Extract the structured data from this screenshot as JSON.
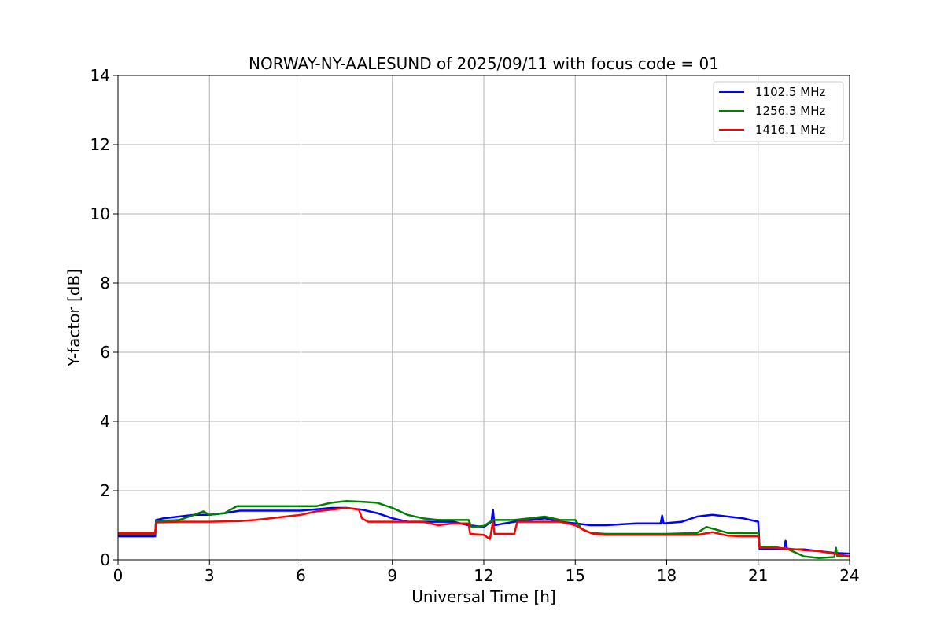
{
  "chart_data": {
    "type": "line",
    "title": "NORWAY-NY-AALESUND of 2025/09/11 with focus code = 01",
    "xlabel": "Universal Time [h]",
    "ylabel": "Y-factor [dB]",
    "xlim": [
      0,
      24
    ],
    "ylim": [
      0,
      14
    ],
    "xticks": [
      0,
      3,
      6,
      9,
      12,
      15,
      18,
      21,
      24
    ],
    "yticks": [
      0,
      2,
      4,
      6,
      8,
      10,
      12,
      14
    ],
    "grid": true,
    "legend_position": "top-right",
    "series": [
      {
        "name": "1102.5 MHz",
        "color": "#0000ff",
        "points": [
          [
            0,
            0.68
          ],
          [
            1.22,
            0.68
          ],
          [
            1.25,
            1.15
          ],
          [
            1.5,
            1.2
          ],
          [
            2.0,
            1.25
          ],
          [
            2.5,
            1.3
          ],
          [
            3.0,
            1.3
          ],
          [
            3.5,
            1.35
          ],
          [
            4.0,
            1.42
          ],
          [
            5.0,
            1.42
          ],
          [
            6.0,
            1.42
          ],
          [
            7.0,
            1.5
          ],
          [
            7.5,
            1.5
          ],
          [
            8.0,
            1.45
          ],
          [
            8.5,
            1.35
          ],
          [
            9.0,
            1.2
          ],
          [
            9.5,
            1.1
          ],
          [
            10.0,
            1.1
          ],
          [
            10.5,
            1.1
          ],
          [
            11.0,
            1.1
          ],
          [
            11.5,
            1.0
          ],
          [
            12.0,
            0.95
          ],
          [
            12.25,
            1.1
          ],
          [
            12.3,
            1.45
          ],
          [
            12.35,
            1.0
          ],
          [
            13.0,
            1.1
          ],
          [
            13.5,
            1.15
          ],
          [
            14.0,
            1.2
          ],
          [
            14.5,
            1.1
          ],
          [
            15.0,
            1.05
          ],
          [
            15.5,
            1.0
          ],
          [
            16.0,
            1.0
          ],
          [
            17.0,
            1.05
          ],
          [
            17.8,
            1.05
          ],
          [
            17.85,
            1.28
          ],
          [
            17.9,
            1.05
          ],
          [
            18.5,
            1.1
          ],
          [
            19.0,
            1.25
          ],
          [
            19.5,
            1.3
          ],
          [
            20.0,
            1.25
          ],
          [
            20.5,
            1.2
          ],
          [
            21.0,
            1.1
          ],
          [
            21.05,
            0.3
          ],
          [
            21.5,
            0.3
          ],
          [
            21.85,
            0.3
          ],
          [
            21.9,
            0.55
          ],
          [
            21.95,
            0.3
          ],
          [
            22.5,
            0.3
          ],
          [
            23.0,
            0.25
          ],
          [
            23.5,
            0.2
          ],
          [
            24.0,
            0.18
          ]
        ]
      },
      {
        "name": "1256.3 MHz",
        "color": "#008000",
        "points": [
          [
            0,
            0.75
          ],
          [
            1.22,
            0.75
          ],
          [
            1.25,
            1.12
          ],
          [
            2.0,
            1.15
          ],
          [
            2.5,
            1.3
          ],
          [
            2.8,
            1.4
          ],
          [
            3.0,
            1.3
          ],
          [
            3.5,
            1.35
          ],
          [
            3.9,
            1.55
          ],
          [
            5.0,
            1.55
          ],
          [
            6.5,
            1.55
          ],
          [
            7.0,
            1.65
          ],
          [
            7.5,
            1.7
          ],
          [
            8.0,
            1.68
          ],
          [
            8.5,
            1.65
          ],
          [
            9.0,
            1.5
          ],
          [
            9.5,
            1.3
          ],
          [
            10.0,
            1.2
          ],
          [
            10.5,
            1.15
          ],
          [
            11.0,
            1.15
          ],
          [
            11.5,
            1.15
          ],
          [
            11.6,
            0.95
          ],
          [
            12.0,
            0.98
          ],
          [
            12.3,
            1.15
          ],
          [
            13.0,
            1.15
          ],
          [
            13.5,
            1.2
          ],
          [
            14.0,
            1.25
          ],
          [
            14.5,
            1.15
          ],
          [
            15.0,
            1.15
          ],
          [
            15.2,
            0.9
          ],
          [
            15.5,
            0.78
          ],
          [
            16.0,
            0.75
          ],
          [
            17.0,
            0.75
          ],
          [
            18.0,
            0.75
          ],
          [
            19.0,
            0.78
          ],
          [
            19.3,
            0.95
          ],
          [
            19.6,
            0.88
          ],
          [
            20.0,
            0.78
          ],
          [
            21.0,
            0.78
          ],
          [
            21.05,
            0.38
          ],
          [
            21.5,
            0.38
          ],
          [
            22.0,
            0.3
          ],
          [
            22.5,
            0.1
          ],
          [
            23.0,
            0.05
          ],
          [
            23.5,
            0.08
          ],
          [
            23.55,
            0.35
          ],
          [
            23.6,
            0.1
          ],
          [
            24.0,
            0.1
          ]
        ]
      },
      {
        "name": "1416.1 MHz",
        "color": "#ff0000",
        "points": [
          [
            0,
            0.78
          ],
          [
            1.22,
            0.78
          ],
          [
            1.25,
            1.08
          ],
          [
            2.0,
            1.1
          ],
          [
            3.0,
            1.1
          ],
          [
            4.0,
            1.12
          ],
          [
            4.5,
            1.15
          ],
          [
            5.0,
            1.2
          ],
          [
            5.5,
            1.25
          ],
          [
            6.0,
            1.3
          ],
          [
            6.5,
            1.4
          ],
          [
            7.0,
            1.45
          ],
          [
            7.5,
            1.5
          ],
          [
            7.9,
            1.45
          ],
          [
            8.0,
            1.2
          ],
          [
            8.2,
            1.1
          ],
          [
            9.0,
            1.1
          ],
          [
            9.5,
            1.1
          ],
          [
            10.0,
            1.1
          ],
          [
            10.5,
            1.0
          ],
          [
            11.0,
            1.05
          ],
          [
            11.5,
            1.05
          ],
          [
            11.55,
            0.75
          ],
          [
            12.0,
            0.72
          ],
          [
            12.2,
            0.6
          ],
          [
            12.3,
            1.1
          ],
          [
            12.35,
            0.75
          ],
          [
            13.0,
            0.75
          ],
          [
            13.1,
            1.1
          ],
          [
            13.5,
            1.1
          ],
          [
            14.0,
            1.1
          ],
          [
            14.5,
            1.1
          ],
          [
            15.0,
            1.0
          ],
          [
            15.3,
            0.85
          ],
          [
            15.6,
            0.75
          ],
          [
            16.0,
            0.72
          ],
          [
            17.0,
            0.72
          ],
          [
            18.0,
            0.72
          ],
          [
            19.0,
            0.72
          ],
          [
            19.5,
            0.8
          ],
          [
            20.0,
            0.7
          ],
          [
            20.5,
            0.68
          ],
          [
            21.0,
            0.68
          ],
          [
            21.05,
            0.35
          ],
          [
            21.5,
            0.35
          ],
          [
            22.0,
            0.32
          ],
          [
            22.5,
            0.28
          ],
          [
            23.0,
            0.25
          ],
          [
            23.5,
            0.18
          ],
          [
            24.0,
            0.1
          ]
        ]
      }
    ]
  }
}
